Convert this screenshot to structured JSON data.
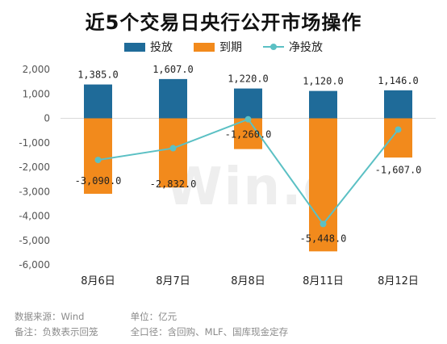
{
  "title": "近5个交易日央行公开市场操作",
  "watermark": "Win.d",
  "legend": [
    {
      "label": "投放",
      "color": "#1f6b99",
      "kind": "box"
    },
    {
      "label": "到期",
      "color": "#f28a1c",
      "kind": "box"
    },
    {
      "label": "净投放",
      "color": "#5bc0c4",
      "kind": "line"
    }
  ],
  "footer": {
    "source": "数据来源：Wind",
    "unit": "单位：亿元",
    "note": "备注：负数表示回笼",
    "scope": "全口径：含回购、MLF、国库现金定存"
  },
  "chart_data": {
    "type": "bar",
    "categories": [
      "8月6日",
      "8月7日",
      "8月8日",
      "8月11日",
      "8月12日"
    ],
    "series": [
      {
        "name": "投放",
        "type": "bar",
        "color": "#1f6b99",
        "values": [
          1385.0,
          1607.0,
          1220.0,
          1120.0,
          1146.0
        ],
        "labels": [
          "1,385.0",
          "1,607.0",
          "1,220.0",
          "1,120.0",
          "1,146.0"
        ]
      },
      {
        "name": "到期",
        "type": "bar",
        "color": "#f28a1c",
        "values": [
          -3090.0,
          -2832.0,
          -1260.0,
          -5448.0,
          -1607.0
        ],
        "labels": [
          "-3,090.0",
          "-2,832.0",
          "-1,260.0",
          "-5,448.0",
          "-1,607.0"
        ]
      },
      {
        "name": "净投放",
        "type": "line",
        "color": "#5bc0c4",
        "values": [
          -1705.0,
          -1225.0,
          -40.0,
          -4328.0,
          -461.0
        ]
      }
    ],
    "ylim": [
      -6000,
      2000
    ],
    "yticks": [
      2000,
      1000,
      0,
      -1000,
      -2000,
      -3000,
      -4000,
      -5000,
      -6000
    ],
    "ytick_labels": [
      "2,000",
      "1,000",
      "0",
      "-1,000",
      "-2,000",
      "-3,000",
      "-4,000",
      "-5,000",
      "-6,000"
    ],
    "grid": false,
    "legend_position": "top-center"
  }
}
